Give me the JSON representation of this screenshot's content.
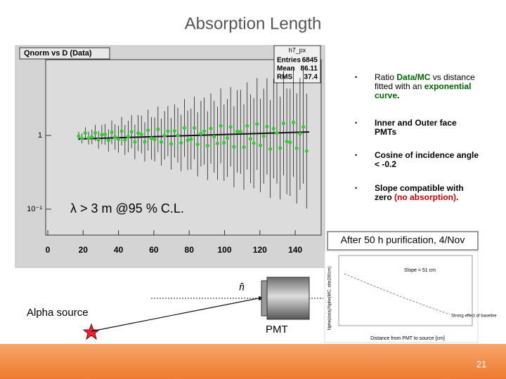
{
  "title": "Absorption Length",
  "root_plot": {
    "title": "Qnorm vs D (Data)",
    "stats": {
      "name": "h7_px",
      "rows": [
        [
          "Entries",
          "6845"
        ],
        [
          "Mean",
          "86.11"
        ],
        [
          "RMS",
          "37.4"
        ]
      ]
    },
    "xticks": [
      "0",
      "20",
      "40",
      "60",
      "80",
      "100",
      "120",
      "140"
    ],
    "yticks": [
      "1",
      "10⁻¹"
    ]
  },
  "annotation": "λ > 3 m @95 % C.L.",
  "bullets": [
    [
      "Ratio ",
      "Data/MC",
      " vs distance fitted with an ",
      "exponential curve",
      "."
    ],
    [
      "Inner and Outer face PMTs"
    ],
    [
      "Cosine of  incidence angle < -0.2"
    ],
    [
      "Slope compatible with zero ",
      "(no absorption)",
      "."
    ]
  ],
  "inset_caption": "After 50 h purification, 4/Nov",
  "inset": {
    "y_label": "Nphe(data)/Nphe(MC, atte200cm)",
    "x_label": "Distance from PMT to source [cm]",
    "slope": "Slope = 51 cm",
    "note": "Strong effect of baseline"
  },
  "diagram": {
    "normal_label": "n̂",
    "source_label": "Alpha source",
    "pmt_label": "PMT"
  },
  "page_number": "21"
}
